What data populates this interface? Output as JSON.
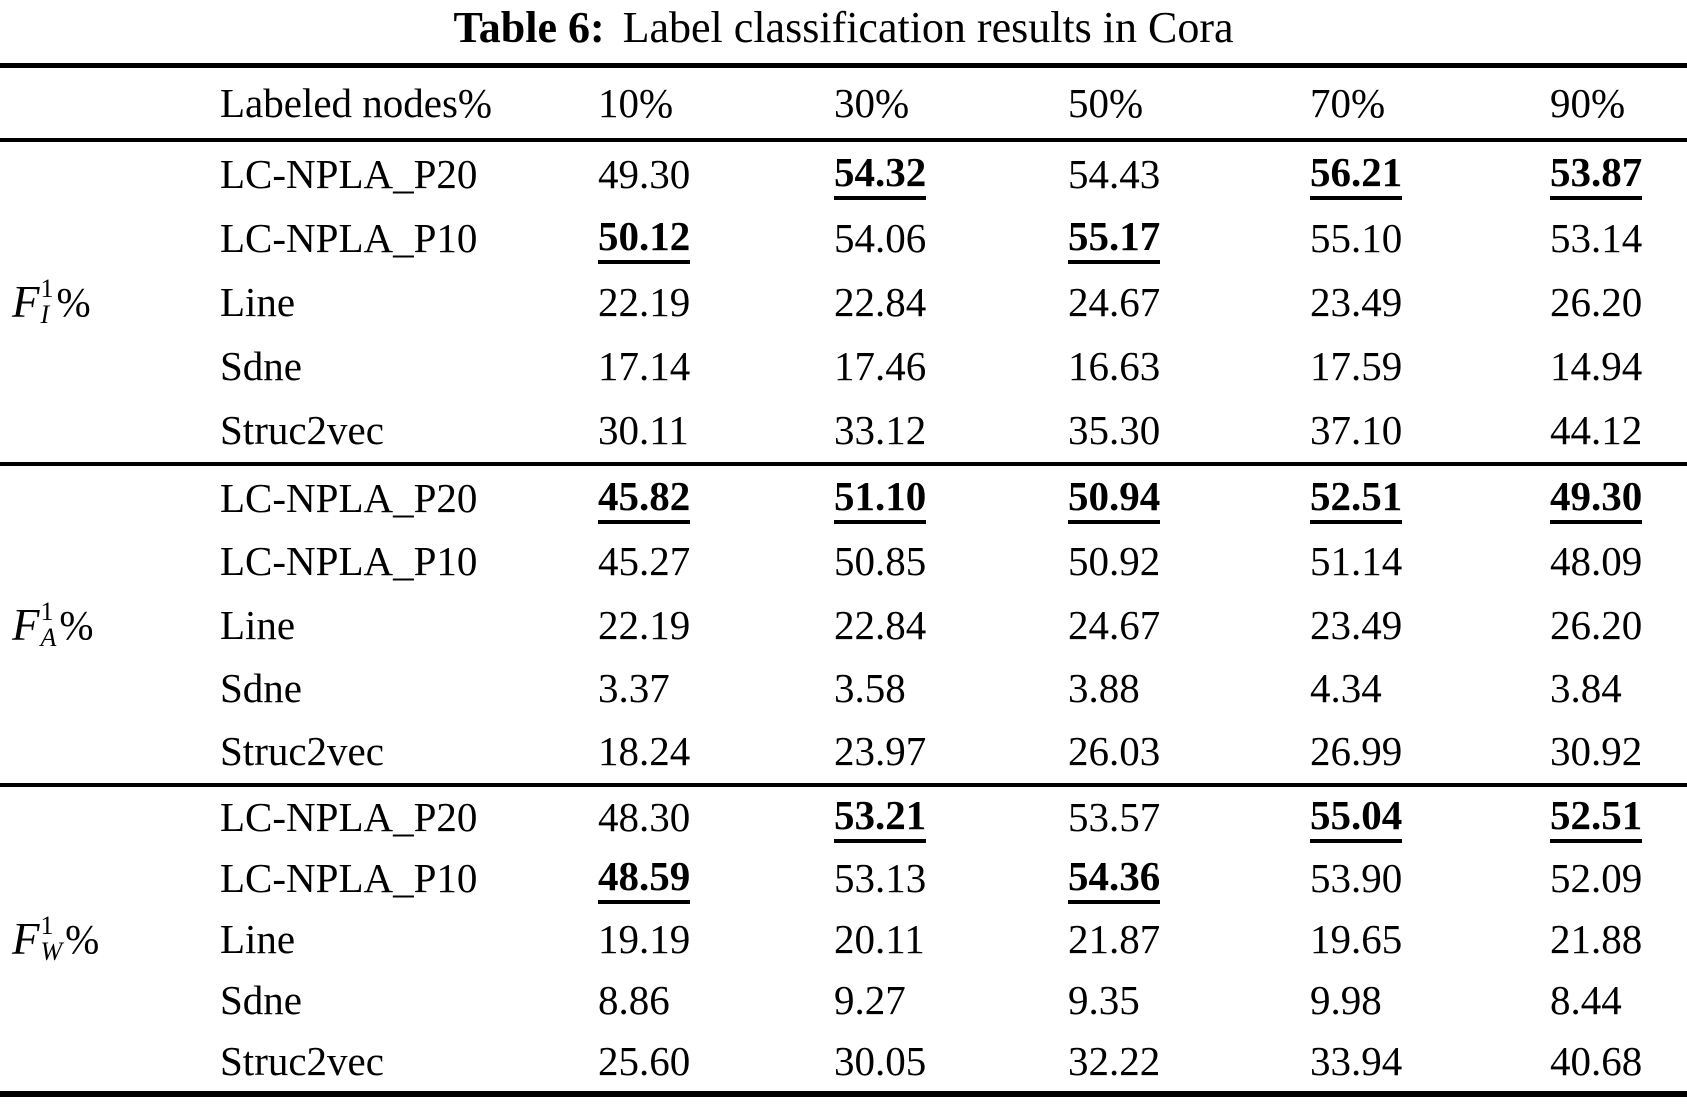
{
  "colors": {
    "text": "#000000",
    "background": "#ffffff"
  },
  "title": {
    "label": "Table 6:",
    "text": "Label classification results in Cora"
  },
  "header": {
    "row_label": "Labeled nodes%",
    "percent_cols": [
      "10%",
      "30%",
      "50%",
      "70%",
      "90%"
    ]
  },
  "sections": [
    {
      "metric": {
        "base": "F",
        "sup": "1",
        "sub": "I",
        "percent": "%"
      },
      "rows": [
        {
          "method": "LC-NPLA_P20",
          "values": [
            {
              "v": "49.30",
              "best": false
            },
            {
              "v": "54.32",
              "best": true
            },
            {
              "v": "54.43",
              "best": false
            },
            {
              "v": "56.21",
              "best": true
            },
            {
              "v": "53.87",
              "best": true
            }
          ]
        },
        {
          "method": "LC-NPLA_P10",
          "values": [
            {
              "v": "50.12",
              "best": true
            },
            {
              "v": "54.06",
              "best": false
            },
            {
              "v": "55.17",
              "best": true
            },
            {
              "v": "55.10",
              "best": false
            },
            {
              "v": "53.14",
              "best": false
            }
          ]
        },
        {
          "method": "Line",
          "values": [
            {
              "v": "22.19",
              "best": false
            },
            {
              "v": "22.84",
              "best": false
            },
            {
              "v": "24.67",
              "best": false
            },
            {
              "v": "23.49",
              "best": false
            },
            {
              "v": "26.20",
              "best": false
            }
          ]
        },
        {
          "method": "Sdne",
          "values": [
            {
              "v": "17.14",
              "best": false
            },
            {
              "v": "17.46",
              "best": false
            },
            {
              "v": "16.63",
              "best": false
            },
            {
              "v": "17.59",
              "best": false
            },
            {
              "v": "14.94",
              "best": false
            }
          ]
        },
        {
          "method": "Struc2vec",
          "values": [
            {
              "v": "30.11",
              "best": false
            },
            {
              "v": "33.12",
              "best": false
            },
            {
              "v": "35.30",
              "best": false
            },
            {
              "v": "37.10",
              "best": false
            },
            {
              "v": "44.12",
              "best": false
            }
          ]
        }
      ]
    },
    {
      "metric": {
        "base": "F",
        "sup": "1",
        "sub": "A",
        "percent": "%"
      },
      "rows": [
        {
          "method": "LC-NPLA_P20",
          "values": [
            {
              "v": "45.82",
              "best": true
            },
            {
              "v": "51.10",
              "best": true
            },
            {
              "v": "50.94",
              "best": true
            },
            {
              "v": "52.51",
              "best": true
            },
            {
              "v": "49.30",
              "best": true
            }
          ]
        },
        {
          "method": "LC-NPLA_P10",
          "values": [
            {
              "v": "45.27",
              "best": false
            },
            {
              "v": "50.85",
              "best": false
            },
            {
              "v": "50.92",
              "best": false
            },
            {
              "v": "51.14",
              "best": false
            },
            {
              "v": "48.09",
              "best": false
            }
          ]
        },
        {
          "method": "Line",
          "values": [
            {
              "v": "22.19",
              "best": false
            },
            {
              "v": "22.84",
              "best": false
            },
            {
              "v": "24.67",
              "best": false
            },
            {
              "v": "23.49",
              "best": false
            },
            {
              "v": "26.20",
              "best": false
            }
          ]
        },
        {
          "method": "Sdne",
          "values": [
            {
              "v": "3.37",
              "best": false
            },
            {
              "v": "3.58",
              "best": false
            },
            {
              "v": "3.88",
              "best": false
            },
            {
              "v": "4.34",
              "best": false
            },
            {
              "v": "3.84",
              "best": false
            }
          ]
        },
        {
          "method": "Struc2vec",
          "values": [
            {
              "v": "18.24",
              "best": false
            },
            {
              "v": "23.97",
              "best": false
            },
            {
              "v": "26.03",
              "best": false
            },
            {
              "v": "26.99",
              "best": false
            },
            {
              "v": "30.92",
              "best": false
            }
          ]
        }
      ]
    },
    {
      "metric": {
        "base": "F",
        "sup": "1",
        "sub": "W",
        "percent": "%"
      },
      "rows": [
        {
          "method": "LC-NPLA_P20",
          "values": [
            {
              "v": "48.30",
              "best": false
            },
            {
              "v": "53.21",
              "best": true
            },
            {
              "v": "53.57",
              "best": false
            },
            {
              "v": "55.04",
              "best": true
            },
            {
              "v": "52.51",
              "best": true
            }
          ]
        },
        {
          "method": "LC-NPLA_P10",
          "values": [
            {
              "v": "48.59",
              "best": true
            },
            {
              "v": "53.13",
              "best": false
            },
            {
              "v": "54.36",
              "best": true
            },
            {
              "v": "53.90",
              "best": false
            },
            {
              "v": "52.09",
              "best": false
            }
          ]
        },
        {
          "method": "Line",
          "values": [
            {
              "v": "19.19",
              "best": false
            },
            {
              "v": "20.11",
              "best": false
            },
            {
              "v": "21.87",
              "best": false
            },
            {
              "v": "19.65",
              "best": false
            },
            {
              "v": "21.88",
              "best": false
            }
          ]
        },
        {
          "method": "Sdne",
          "values": [
            {
              "v": "8.86",
              "best": false
            },
            {
              "v": "9.27",
              "best": false
            },
            {
              "v": "9.35",
              "best": false
            },
            {
              "v": "9.98",
              "best": false
            },
            {
              "v": "8.44",
              "best": false
            }
          ]
        },
        {
          "method": "Struc2vec",
          "values": [
            {
              "v": "25.60",
              "best": false
            },
            {
              "v": "30.05",
              "best": false
            },
            {
              "v": "32.22",
              "best": false
            },
            {
              "v": "33.94",
              "best": false
            },
            {
              "v": "40.68",
              "best": false
            }
          ]
        }
      ]
    }
  ]
}
